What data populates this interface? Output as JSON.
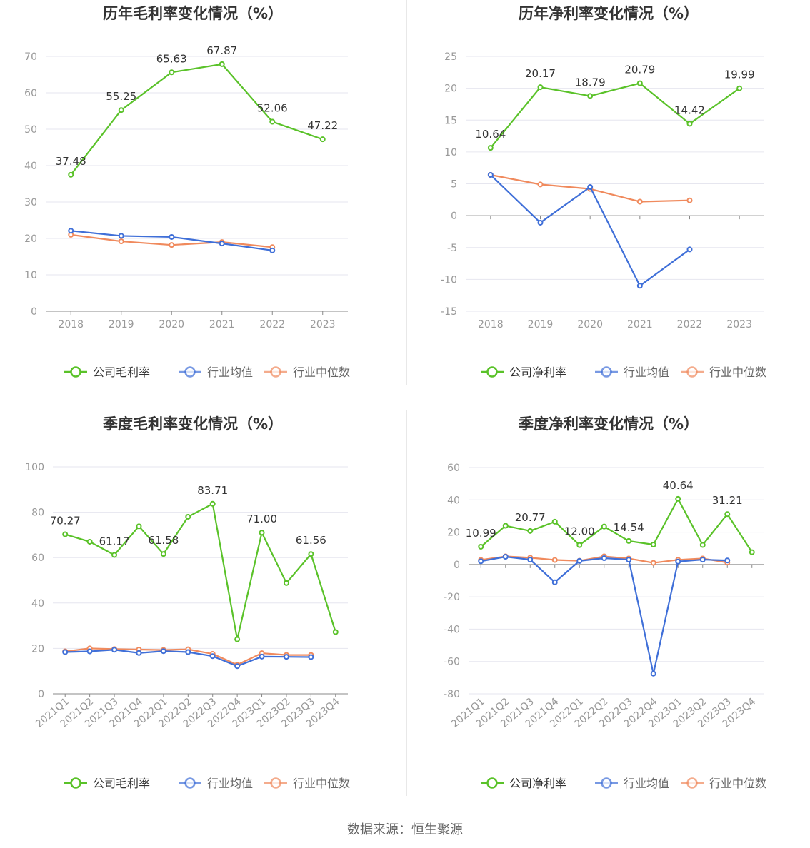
{
  "colors": {
    "company": "#5ac229",
    "industry_avg": "#3f6fd8",
    "industry_median": "#f08a5d",
    "grid": "#e6e6ef",
    "axis": "#888888",
    "text": "#333333",
    "tick": "#999999"
  },
  "legend": {
    "industry_avg": "行业均值",
    "industry_median": "行业中位数"
  },
  "source": "数据来源：恒生聚源",
  "chart_data": [
    {
      "type": "line",
      "title": "历年毛利率变化情况（%）",
      "categories": [
        "2018",
        "2019",
        "2020",
        "2021",
        "2022",
        "2023"
      ],
      "ylim": [
        0,
        70
      ],
      "yticks": [
        0,
        10,
        20,
        30,
        40,
        50,
        60,
        70
      ],
      "rotate_x": false,
      "series": [
        {
          "name": "公司毛利率",
          "key": "company",
          "values": [
            37.48,
            55.25,
            65.63,
            67.87,
            52.06,
            47.22
          ],
          "labels": [
            "37.48",
            "55.25",
            "65.63",
            "67.87",
            "52.06",
            "47.22"
          ]
        },
        {
          "name": "行业均值",
          "key": "industry_avg",
          "values": [
            22.1,
            20.7,
            20.4,
            18.6,
            16.7,
            null
          ]
        },
        {
          "name": "行业中位数",
          "key": "industry_median",
          "values": [
            21.0,
            19.2,
            18.2,
            19.0,
            17.6,
            null
          ]
        }
      ]
    },
    {
      "type": "line",
      "title": "历年净利率变化情况（%）",
      "categories": [
        "2018",
        "2019",
        "2020",
        "2021",
        "2022",
        "2023"
      ],
      "ylim": [
        -15,
        25
      ],
      "yticks": [
        -15,
        -10,
        -5,
        0,
        5,
        10,
        15,
        20,
        25
      ],
      "rotate_x": false,
      "series": [
        {
          "name": "公司净利率",
          "key": "company",
          "values": [
            10.64,
            20.17,
            18.79,
            20.79,
            14.42,
            19.99
          ],
          "labels": [
            "10.64",
            "20.17",
            "18.79",
            "20.79",
            "14.42",
            "19.99"
          ]
        },
        {
          "name": "行业均值",
          "key": "industry_avg",
          "values": [
            6.4,
            -1.1,
            4.5,
            -11.0,
            -5.3,
            null
          ]
        },
        {
          "name": "行业中位数",
          "key": "industry_median",
          "values": [
            6.4,
            4.9,
            4.2,
            2.2,
            2.4,
            null
          ]
        }
      ]
    },
    {
      "type": "line",
      "title": "季度毛利率变化情况（%）",
      "categories": [
        "2021Q1",
        "2021Q2",
        "2021Q3",
        "2021Q4",
        "2022Q1",
        "2022Q2",
        "2022Q3",
        "2022Q4",
        "2023Q1",
        "2023Q2",
        "2023Q3",
        "2023Q4"
      ],
      "ylim": [
        0,
        100
      ],
      "yticks": [
        0,
        20,
        40,
        60,
        80,
        100
      ],
      "rotate_x": true,
      "series": [
        {
          "name": "公司毛利率",
          "key": "company",
          "values": [
            70.27,
            67.0,
            61.17,
            73.8,
            61.58,
            78.0,
            83.71,
            24.0,
            71.0,
            48.8,
            61.56,
            27.2
          ],
          "labels": [
            "70.27",
            "",
            "61.17",
            "",
            "61.58",
            "",
            "83.71",
            "",
            "71.00",
            "",
            "61.56",
            ""
          ]
        },
        {
          "name": "行业均值",
          "key": "industry_avg",
          "values": [
            18.4,
            18.7,
            19.4,
            18.0,
            18.8,
            18.4,
            16.6,
            12.2,
            16.4,
            16.3,
            16.2,
            null
          ]
        },
        {
          "name": "行业中位数",
          "key": "industry_median",
          "values": [
            18.7,
            20.0,
            19.7,
            19.5,
            19.3,
            19.6,
            17.6,
            12.8,
            17.9,
            17.1,
            17.1,
            null
          ]
        }
      ]
    },
    {
      "type": "line",
      "title": "季度净利率变化情况（%）",
      "categories": [
        "2021Q1",
        "2021Q2",
        "2021Q3",
        "2021Q4",
        "2022Q1",
        "2022Q2",
        "2022Q3",
        "2022Q4",
        "2023Q1",
        "2023Q2",
        "2023Q3",
        "2023Q4"
      ],
      "ylim": [
        -80,
        60
      ],
      "yticks": [
        -80,
        -60,
        -40,
        -20,
        0,
        20,
        40,
        60
      ],
      "rotate_x": true,
      "series": [
        {
          "name": "公司净利率",
          "key": "company",
          "values": [
            10.99,
            24.0,
            20.77,
            26.5,
            12.0,
            23.5,
            14.54,
            12.3,
            40.64,
            12.1,
            31.21,
            7.6
          ],
          "labels": [
            "10.99",
            "",
            "20.77",
            "",
            "12.00",
            "",
            "14.54",
            "",
            "40.64",
            "",
            "31.21",
            ""
          ]
        },
        {
          "name": "行业均值",
          "key": "industry_avg",
          "values": [
            2.0,
            4.8,
            3.0,
            -11.0,
            2.2,
            3.9,
            3.0,
            -67.5,
            1.8,
            3.0,
            2.5,
            null
          ]
        },
        {
          "name": "行业中位数",
          "key": "industry_median",
          "values": [
            2.8,
            5.0,
            4.2,
            2.8,
            2.3,
            5.0,
            3.7,
            1.0,
            2.9,
            3.7,
            1.2,
            null
          ]
        }
      ]
    }
  ]
}
